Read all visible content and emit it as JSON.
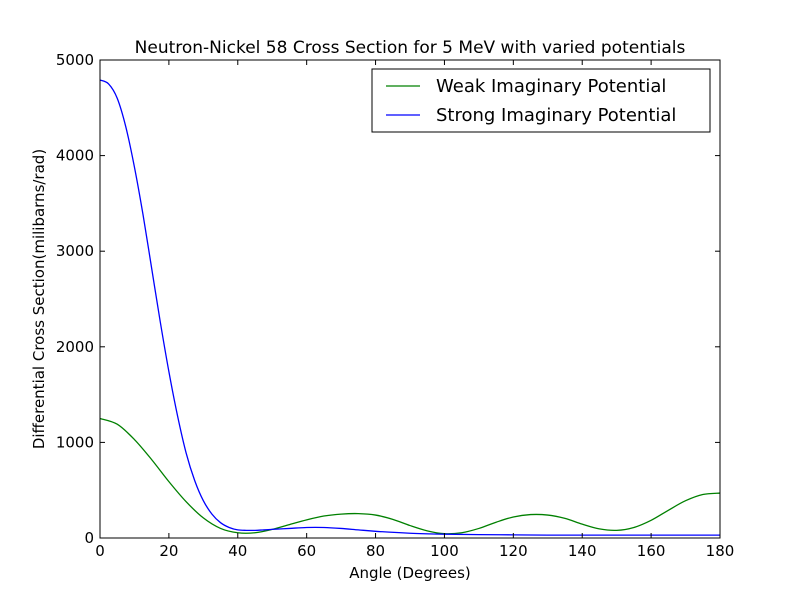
{
  "chart_data": {
    "type": "line",
    "title": "Neutron-Nickel 58 Cross Section for 5 MeV with varied potentials",
    "xlabel": "Angle (Degrees)",
    "ylabel": "Differential Cross Section(milibarns/rad)",
    "xlim": [
      0,
      180
    ],
    "ylim": [
      0,
      5000
    ],
    "xticks": [
      "0",
      "20",
      "40",
      "60",
      "80",
      "100",
      "120",
      "140",
      "160",
      "180"
    ],
    "yticks": [
      "0",
      "1000",
      "2000",
      "3000",
      "4000",
      "5000"
    ],
    "grid": false,
    "legend_position": "top-right",
    "series": [
      {
        "name": "Weak Imaginary Potential",
        "color": "#008000",
        "x": [
          0,
          5,
          10,
          15,
          20,
          25,
          30,
          35,
          40,
          45,
          50,
          55,
          60,
          65,
          70,
          75,
          80,
          85,
          90,
          95,
          100,
          105,
          110,
          115,
          120,
          125,
          130,
          135,
          140,
          145,
          150,
          155,
          160,
          165,
          170,
          175,
          180
        ],
        "y": [
          1250,
          1190,
          1030,
          820,
          590,
          380,
          210,
          100,
          55,
          55,
          90,
          140,
          190,
          230,
          250,
          255,
          240,
          195,
          130,
          75,
          45,
          55,
          100,
          165,
          220,
          245,
          240,
          205,
          145,
          95,
          80,
          110,
          185,
          290,
          390,
          455,
          470
        ]
      },
      {
        "name": "Strong Imaginary Potential",
        "color": "#0000ff",
        "x": [
          0,
          2.5,
          5,
          7.5,
          10,
          12.5,
          15,
          17.5,
          20,
          22.5,
          25,
          27.5,
          30,
          32.5,
          35,
          37.5,
          40,
          42.5,
          45,
          47.5,
          50,
          55,
          60,
          65,
          70,
          75,
          80,
          90,
          100,
          110,
          120,
          130,
          140,
          150,
          160,
          170,
          180
        ],
        "y": [
          4790,
          4750,
          4600,
          4300,
          3880,
          3380,
          2820,
          2260,
          1740,
          1280,
          890,
          600,
          390,
          250,
          160,
          110,
          85,
          80,
          80,
          85,
          90,
          100,
          110,
          110,
          100,
          85,
          70,
          50,
          40,
          35,
          33,
          30,
          30,
          30,
          30,
          30,
          30
        ]
      }
    ]
  }
}
